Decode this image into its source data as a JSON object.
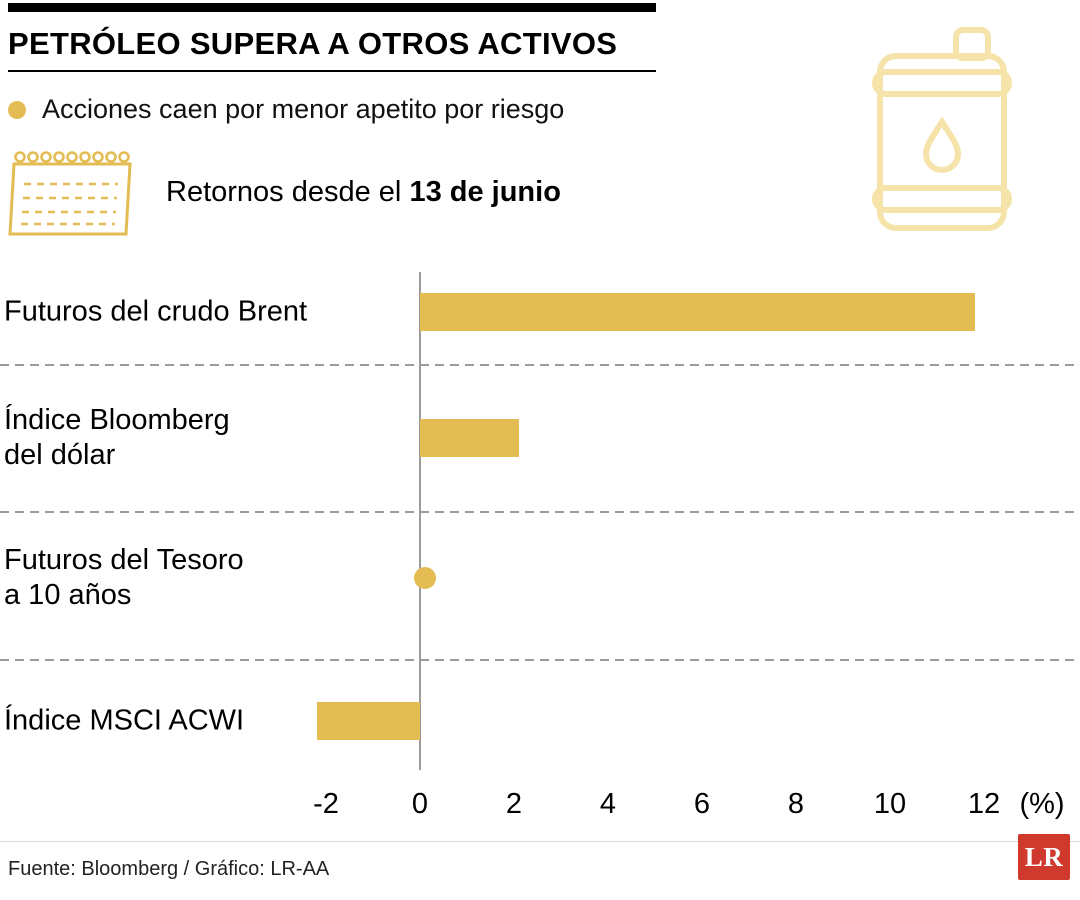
{
  "colors": {
    "accent": "#E4BC54",
    "barrel_icon": "#F6E3A9",
    "axis_gray": "#9B9B9B",
    "logo_red": "#D0392E"
  },
  "header": {
    "title": "PETRÓLEO SUPERA A OTROS ACTIVOS",
    "subtitle": "Acciones caen por menor apetito por riesgo",
    "period_prefix": "Retornos desde el ",
    "period_bold": "13 de junio"
  },
  "icons": {
    "bullet": "bullet-dot-icon",
    "calendar": "calendar-icon",
    "barrel": "oil-barrel-icon"
  },
  "chart_data": {
    "type": "bar",
    "orientation": "horizontal",
    "title": "PETRÓLEO SUPERA A OTROS ACTIVOS",
    "subtitle": "Acciones caen por menor apetito por riesgo",
    "period": "Retornos desde el 13 de junio",
    "categories": [
      "Futuros del crudo Brent",
      "Índice Bloomberg\ndel dólar",
      "Futuros del Tesoro\na 10 años",
      "Índice MSCI ACWI"
    ],
    "values": [
      11.8,
      2.1,
      0.1,
      -2.2
    ],
    "unit": "%",
    "x_ticks": [
      -2,
      0,
      2,
      4,
      6,
      8,
      10,
      12
    ],
    "x_axis_suffix": "(%)",
    "xlim": [
      -2,
      12
    ],
    "grid": false,
    "bar_color": "#E4BC54"
  },
  "footer": {
    "source": "Fuente: Bloomberg / Gráfico: LR-AA",
    "logo_text": "LR"
  }
}
